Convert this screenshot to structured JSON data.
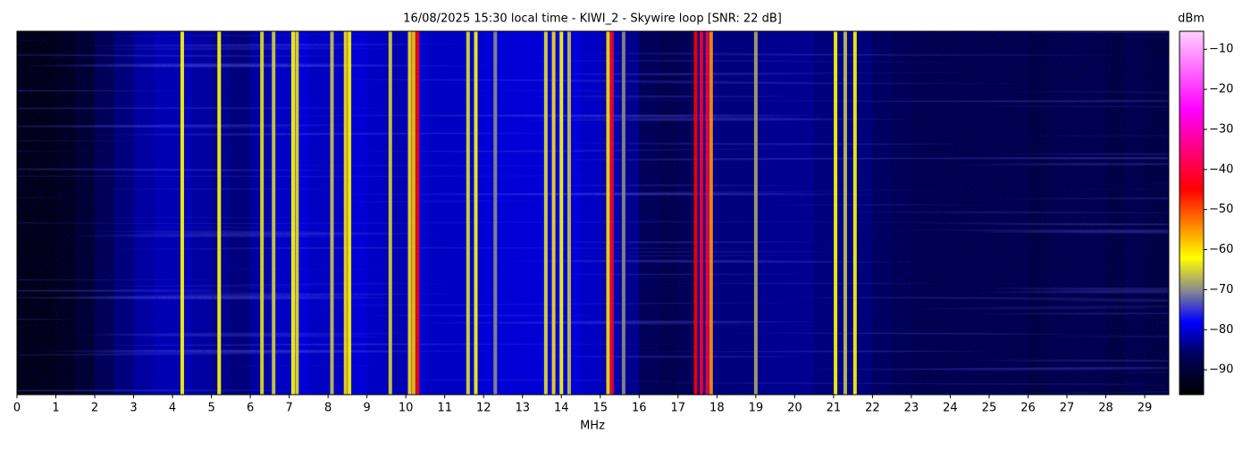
{
  "chart_data": {
    "type": "waterfall",
    "title": "16/08/2025 15:30 local time - KIWI_2 - Skywire loop [SNR: 22 dB]",
    "x_label": "MHz",
    "colorbar_label": "dBm",
    "xlim": [
      0,
      29.62
    ],
    "xticks": [
      0,
      1,
      2,
      3,
      4,
      5,
      6,
      7,
      8,
      9,
      10,
      11,
      12,
      13,
      14,
      15,
      16,
      17,
      18,
      19,
      20,
      21,
      22,
      23,
      24,
      25,
      26,
      27,
      28,
      29
    ],
    "clim": [
      -96.2,
      -5.5
    ],
    "colorbar_ticks": [
      {
        "value": -10,
        "label": "−10"
      },
      {
        "value": -20,
        "label": "−20"
      },
      {
        "value": -30,
        "label": "−30"
      },
      {
        "value": -40,
        "label": "−40"
      },
      {
        "value": -50,
        "label": "−50"
      },
      {
        "value": -60,
        "label": "−60"
      },
      {
        "value": -70,
        "label": "−70"
      },
      {
        "value": -80,
        "label": "−80"
      },
      {
        "value": -90,
        "label": "−90"
      }
    ],
    "colormap": [
      {
        "value": -96.2,
        "color": "#000000"
      },
      {
        "value": -86,
        "color": "#000060"
      },
      {
        "value": -78,
        "color": "#0000ff"
      },
      {
        "value": -70,
        "color": "#8c8c8c"
      },
      {
        "value": -62,
        "color": "#ffff00"
      },
      {
        "value": -45,
        "color": "#ff0000"
      },
      {
        "value": -25,
        "color": "#ff00ff"
      },
      {
        "value": -5.5,
        "color": "#ffd0ff"
      }
    ],
    "noise_floor": {
      "x": [
        0,
        0.5,
        1,
        1.5,
        2,
        2.5,
        3,
        3.5,
        4,
        4.5,
        5,
        5.5,
        6,
        6.5,
        7,
        7.5,
        8,
        8.5,
        9,
        9.5,
        10,
        10.5,
        11,
        11.5,
        12,
        12.5,
        13,
        13.5,
        14,
        14.5,
        15,
        15.5,
        16,
        16.5,
        17,
        17.5,
        18,
        18.5,
        19,
        19.5,
        20,
        20.5,
        21,
        21.5,
        22,
        22.5,
        23,
        23.5,
        24,
        24.5,
        25,
        25.5,
        26,
        26.5,
        27,
        27.5,
        28,
        28.5,
        29,
        29.5
      ],
      "values": [
        -95,
        -95,
        -94,
        -92,
        -88,
        -85,
        -83,
        -82,
        -82,
        -83,
        -84,
        -85,
        -83,
        -81,
        -80,
        -81,
        -81,
        -80,
        -81,
        -82,
        -80,
        -81,
        -81,
        -80,
        -80,
        -80,
        -80,
        -79,
        -80,
        -81,
        -82,
        -84,
        -88,
        -89,
        -88,
        -84,
        -85,
        -85,
        -84,
        -84,
        -84,
        -85,
        -84,
        -85,
        -87,
        -88,
        -89,
        -89,
        -89,
        -89,
        -89,
        -89,
        -90,
        -89,
        -89,
        -89,
        -90,
        -89,
        -90,
        -90
      ]
    },
    "signals": {
      "x": [
        4.25,
        5.2,
        6.3,
        6.6,
        7.1,
        7.2,
        8.1,
        8.45,
        8.55,
        9.6,
        10.1,
        10.2,
        10.3,
        11.6,
        11.8,
        12.3,
        13.6,
        13.8,
        14.0,
        14.2,
        15.2,
        15.3,
        15.6,
        17.45,
        17.6,
        17.75,
        17.85,
        19.0,
        21.05,
        21.3,
        21.55
      ],
      "values": [
        -62,
        -62,
        -64,
        -65,
        -62,
        -64,
        -66,
        -60,
        -62,
        -65,
        -60,
        -58,
        -45,
        -64,
        -62,
        -70,
        -64,
        -60,
        -62,
        -66,
        -60,
        -42,
        -70,
        -45,
        -42,
        -40,
        -55,
        -68,
        -62,
        -66,
        -62
      ]
    }
  }
}
